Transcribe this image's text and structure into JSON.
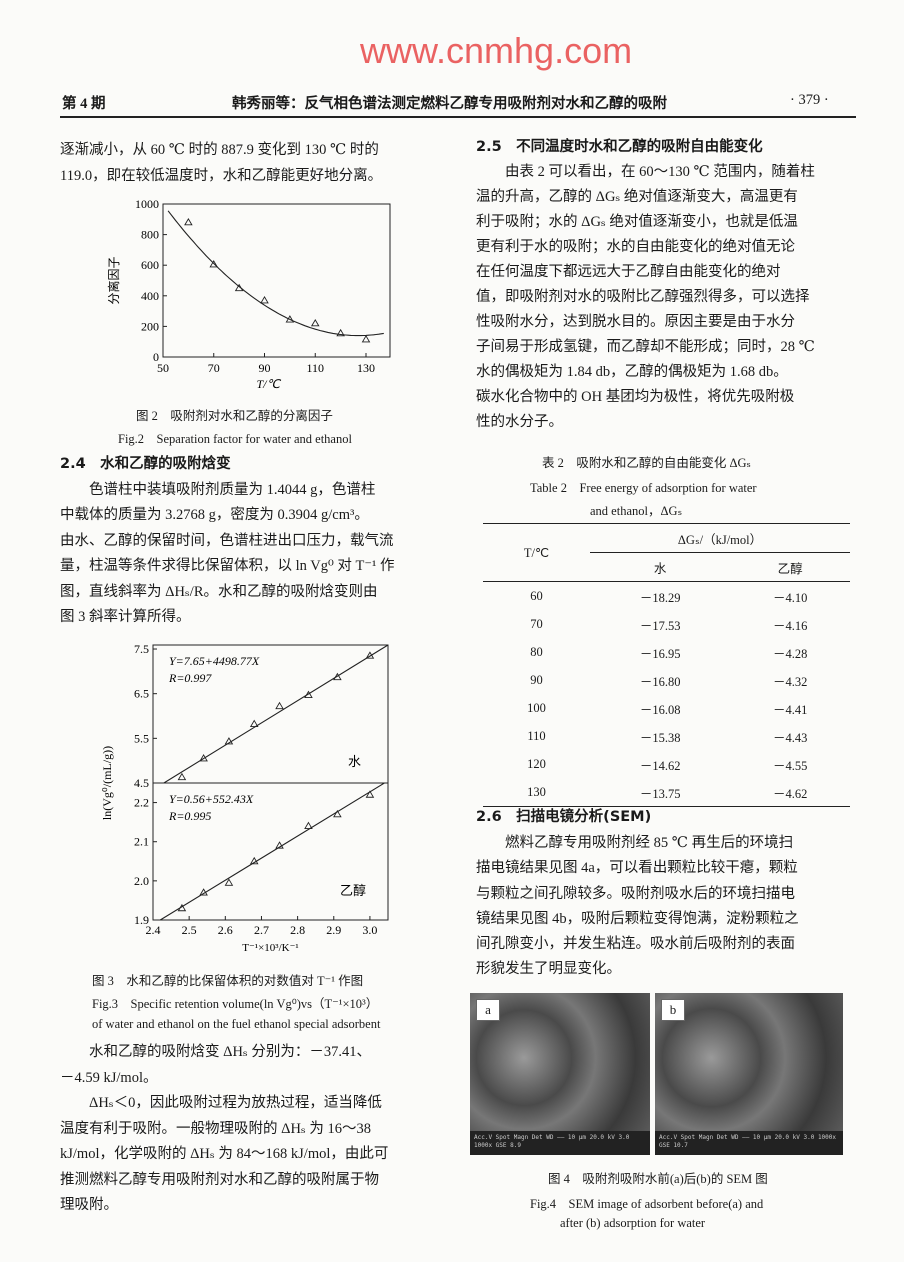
{
  "header": {
    "issue": "第 4 期",
    "title": "韩秀丽等：反气相色谱法测定燃料乙醇专用吸附剂对水和乙醇的吸附",
    "page": "· 379 ·"
  },
  "left": {
    "intro_lines": [
      "逐渐减小，从 60 ℃ 时的 887.9 变化到 130 ℃ 时的",
      "119.0，即在较低温度时，水和乙醇能更好地分离。"
    ],
    "fig2_caption_cn": "图 2　吸附剂对水和乙醇的分离因子",
    "fig2_caption_en": "Fig.2　Separation factor for water and ethanol",
    "sec24_heading": "2.4　水和乙醇的吸附焓变",
    "sec24_lines": [
      "色谱柱中装填吸附剂质量为 1.4044 g，色谱柱",
      "中载体的质量为 3.2768 g，密度为 0.3904 g/cm³。",
      "由水、乙醇的保留时间，色谱柱进出口压力，载气流",
      "量，柱温等条件求得比保留体积，以 ln Vg⁰ 对 T⁻¹ 作",
      "图，直线斜率为 ΔHₛ/R。水和乙醇的吸附焓变则由",
      "图 3 斜率计算所得。"
    ],
    "fig3_caption_cn": "图 3　水和乙醇的比保留体积的对数值对 T⁻¹ 作图",
    "fig3_caption_en1": "Fig.3　Specific retention volume(ln Vg⁰)vs（T⁻¹×10³）",
    "fig3_caption_en2": "of water and ethanol on the fuel ethanol special adsorbent",
    "after_lines": [
      "水和乙醇的吸附焓变 ΔHₛ 分别为：－37.41、",
      "－4.59 kJ/mol。",
      "ΔHₛ＜0，因此吸附过程为放热过程，适当降低",
      "温度有利于吸附。一般物理吸附的 ΔHₛ 为 16～38",
      "kJ/mol，化学吸附的 ΔHₛ 为 84～168 kJ/mol，由此可",
      "推测燃料乙醇专用吸附剂对水和乙醇的吸附属于物",
      "理吸附。"
    ]
  },
  "right": {
    "sec25_heading": "2.5　不同温度时水和乙醇的吸附自由能变化",
    "sec25_lines": [
      "由表 2 可以看出，在 60～130 ℃ 范围内，随着柱",
      "温的升高，乙醇的 ΔGₛ 绝对值逐渐变大，高温更有",
      "利于吸附；水的 ΔGₛ 绝对值逐渐变小，也就是低温",
      "更有利于水的吸附；水的自由能变化的绝对值无论",
      "在任何温度下都远远大于乙醇自由能变化的绝对",
      "值，即吸附剂对水的吸附比乙醇强烈得多，可以选择",
      "性吸附水分，达到脱水目的。原因主要是由于水分",
      "子间易于形成氢键，而乙醇却不能形成；同时，28 ℃",
      "水的偶极矩为 1.84 db，乙醇的偶极矩为 1.68 db。",
      "碳水化合物中的 OH 基团均为极性，将优先吸附极",
      "性的水分子。"
    ],
    "table2": {
      "caption_cn": "表 2　吸附水和乙醇的自由能变化 ΔGₛ",
      "caption_en1": "Table 2　Free energy of adsorption for water",
      "caption_en2": "and ethanol，ΔGₛ",
      "col_t": "T/℃",
      "col_group": "ΔGₛ/（kJ/mol）",
      "col_water": "水",
      "col_ethanol": "乙醇",
      "rows": [
        [
          "60",
          "－18.29",
          "－4.10"
        ],
        [
          "70",
          "－17.53",
          "－4.16"
        ],
        [
          "80",
          "－16.95",
          "－4.28"
        ],
        [
          "90",
          "－16.80",
          "－4.32"
        ],
        [
          "100",
          "－16.08",
          "－4.41"
        ],
        [
          "110",
          "－15.38",
          "－4.43"
        ],
        [
          "120",
          "－14.62",
          "－4.55"
        ],
        [
          "130",
          "－13.75",
          "－4.62"
        ]
      ]
    },
    "sec26_heading": "2.6　扫描电镜分析(SEM)",
    "sec26_lines": [
      "燃料乙醇专用吸附剂经 85 ℃ 再生后的环境扫",
      "描电镜结果见图 4a，可以看出颗粒比较干瘪，颗粒",
      "与颗粒之间孔隙较多。吸附剂吸水后的环境扫描电",
      "镜结果见图 4b，吸附后颗粒变得饱满，淀粉颗粒之",
      "间孔隙变小，并发生粘连。吸水前后吸附剂的表面",
      "形貌发生了明显变化。"
    ],
    "fig4": {
      "label_a": "a",
      "label_b": "b",
      "scalebar_a": "Acc.V  Spot Magn  Det  WD  ——  10 μm  20.0 kV 3.0  1000x  GSE 8.9",
      "scalebar_b": "Acc.V  Spot Magn  Det  WD  ——  10 μm  20.0 kV 3.0  1000x  GSE 10.7"
    },
    "fig4_caption_cn": "图 4　吸附剂吸附水前(a)后(b)的 SEM 图",
    "fig4_caption_en1": "Fig.4　SEM image of adsorbent before(a) and",
    "fig4_caption_en2": "after (b) adsorption for water"
  },
  "watermark": "www.cnmhg.com",
  "chart_data": [
    {
      "type": "scatter",
      "title": "",
      "xlabel": "T/℃",
      "ylabel": "分离因子",
      "xlim": [
        50,
        137
      ],
      "ylim": [
        0,
        1000
      ],
      "xticks": [
        50,
        70,
        90,
        110,
        130
      ],
      "yticks": [
        0,
        200,
        400,
        600,
        800,
        1000
      ],
      "marker": "triangle",
      "fit": "quadratic curve",
      "x": [
        60,
        70,
        80,
        90,
        100,
        110,
        120,
        130
      ],
      "y": [
        880,
        605,
        450,
        370,
        245,
        220,
        155,
        115
      ]
    },
    {
      "type": "scatter",
      "title": "",
      "xlabel": "T⁻¹×10³/K⁻¹",
      "ylabel": "ln(Vg⁰/(mL/g))",
      "xlim": [
        2.4,
        3.05
      ],
      "xticks": [
        "2.4",
        "2.5",
        "2.6",
        "2.7",
        "2.8",
        "2.9",
        "3.0"
      ],
      "fit": "linear",
      "panels": [
        {
          "label": "水",
          "equation": "Y=7.65+4498.77X",
          "r": "R=0.997",
          "ylim": [
            4.5,
            7.59
          ],
          "yticks": [
            "4.5",
            "5.5",
            "6.5",
            "7.5"
          ],
          "x": [
            2.48,
            2.54,
            2.61,
            2.68,
            2.75,
            2.83,
            2.91,
            3.0
          ],
          "y": [
            4.63,
            5.05,
            5.43,
            5.82,
            6.22,
            6.47,
            6.87,
            7.35
          ]
        },
        {
          "label": "乙醇",
          "equation": "Y=0.56+552.43X",
          "r": "R=0.995",
          "ylim": [
            1.9,
            2.25
          ],
          "yticks": [
            "1.9",
            "2.0",
            "2.1",
            "2.2"
          ],
          "x": [
            2.48,
            2.54,
            2.61,
            2.68,
            2.75,
            2.83,
            2.91,
            3.0
          ],
          "y": [
            1.93,
            1.97,
            1.995,
            2.05,
            2.09,
            2.14,
            2.17,
            2.22
          ]
        }
      ]
    }
  ]
}
